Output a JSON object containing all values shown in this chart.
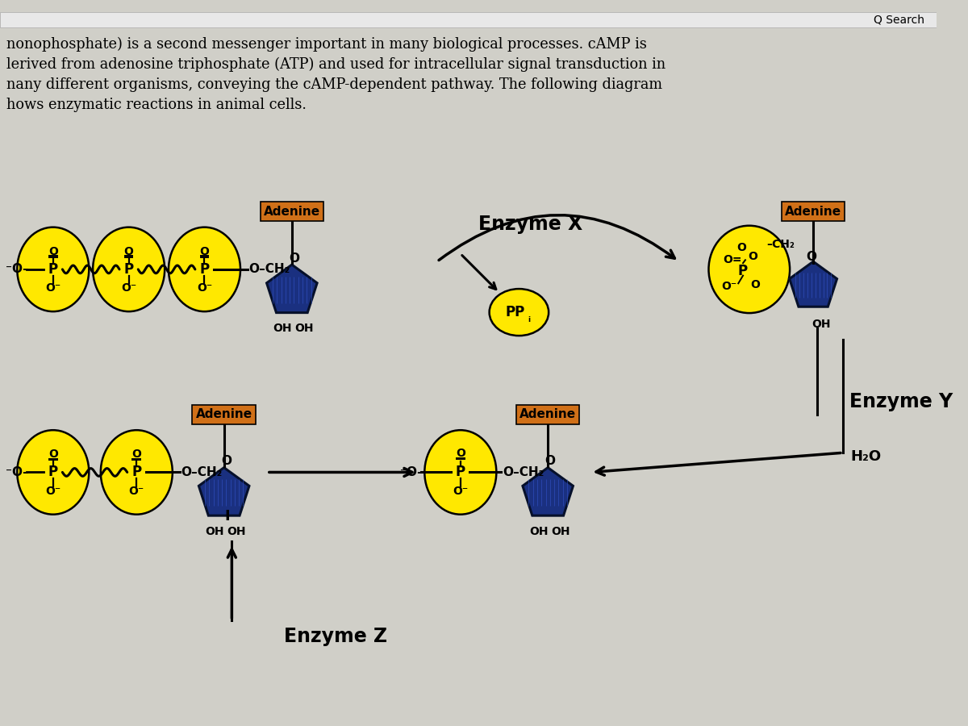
{
  "bg_color": "#d0cfc8",
  "yellow": "#FFE800",
  "blue_dark": "#1a3080",
  "orange": "#d07018",
  "black": "#000000",
  "white": "#ffffff",
  "header_lines": [
    "nonophosphate) is a second messenger important in many biological processes. cAMP is",
    "lerived from adenosine triphosphate (ATP) and used for intracellular signal transduction in",
    "nany different organisms, conveying the cAMP-dependent pathway. The following diagram",
    "hows enzymatic reactions in animal cells."
  ],
  "search_text": "Q Search",
  "enzyme_x": "Enzyme X",
  "enzyme_y": "Enzyme Y",
  "enzyme_z": "Enzyme Z",
  "adenine": "Adenine",
  "ppi": "PP",
  "h2o": "H₂O",
  "oh": "OH",
  "ch2": "CH₂",
  "o_minus": "O⁻"
}
